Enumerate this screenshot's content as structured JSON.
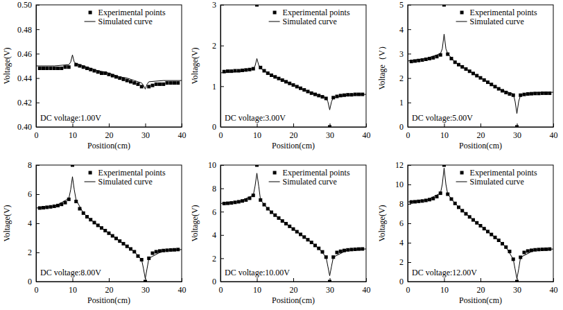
{
  "chart_data": [
    {
      "type": "scatter",
      "annotation": "DC voltage:1.00V",
      "x_label": "Position(cm)",
      "y_label": "Voltage(V)",
      "xlim": [
        0,
        40
      ],
      "xticks": [
        0,
        10,
        20,
        30,
        40
      ],
      "ylim": [
        0.4,
        0.5
      ],
      "yticks": [
        {
          "value": 0.4,
          "label": "0.40"
        },
        {
          "value": 0.42,
          "label": "0.42"
        },
        {
          "value": 0.44,
          "label": "0.44"
        },
        {
          "value": 0.46,
          "label": "0.46"
        },
        {
          "value": 0.48,
          "label": "0.48"
        },
        {
          "value": 0.5,
          "label": "0.50"
        }
      ],
      "legend": "upper right",
      "series": [
        {
          "name": "Experimental points",
          "type": "scatter",
          "marker": "square",
          "color": "#000000",
          "x": [
            1,
            2,
            3,
            4,
            5,
            6,
            7,
            8,
            9,
            10,
            11,
            12,
            13,
            14,
            15,
            16,
            17,
            18,
            19,
            20,
            21,
            22,
            23,
            24,
            25,
            26,
            27,
            28,
            29,
            30,
            31,
            32,
            33,
            34,
            35,
            36,
            37,
            38,
            39
          ],
          "values": [
            0.448,
            0.448,
            0.448,
            0.448,
            0.448,
            0.448,
            0.448,
            0.449,
            0.449,
            null,
            0.451,
            0.45,
            0.449,
            0.448,
            0.447,
            0.446,
            0.445,
            0.444,
            0.444,
            0.443,
            0.442,
            0.441,
            0.44,
            0.439,
            0.438,
            0.437,
            0.436,
            0.435,
            0.433,
            null,
            0.433,
            0.434,
            0.435,
            0.435,
            0.435,
            0.436,
            0.436,
            0.436,
            0.436
          ]
        },
        {
          "name": "Simulated curve",
          "type": "line",
          "line_style": "solid",
          "color": "#000000",
          "x": [
            0,
            5,
            9,
            9.5,
            10,
            10.5,
            11,
            13,
            15,
            17,
            19,
            21,
            23,
            25,
            27,
            29,
            29.5,
            30,
            30.5,
            31,
            35,
            40
          ],
          "values": [
            0.45,
            0.45,
            0.451,
            0.453,
            0.459,
            0.453,
            0.452,
            0.45,
            0.448,
            0.446,
            0.445,
            0.443,
            0.441,
            0.44,
            0.438,
            0.436,
            0.434,
            0.431,
            0.435,
            0.437,
            0.438,
            0.438
          ]
        }
      ]
    },
    {
      "type": "scatter",
      "annotation": "DC voltage:3.00V",
      "x_label": "Position(cm)",
      "y_label": "Voltage(V)",
      "xlim": [
        0,
        40
      ],
      "xticks": [
        0,
        10,
        20,
        30,
        40
      ],
      "ylim": [
        0,
        3
      ],
      "yticks": [
        0,
        1,
        2,
        3
      ],
      "legend": "upper right",
      "series": [
        {
          "name": "Experimental points",
          "type": "scatter",
          "marker": "square",
          "color": "#000000",
          "x": [
            1,
            2,
            3,
            4,
            5,
            6,
            7,
            8,
            9,
            10,
            11,
            12,
            13,
            14,
            15,
            16,
            17,
            18,
            19,
            20,
            21,
            22,
            23,
            24,
            25,
            26,
            27,
            28,
            29,
            30,
            31,
            32,
            33,
            34,
            35,
            36,
            37,
            38,
            39
          ],
          "values": [
            1.36,
            1.37,
            1.37,
            1.38,
            1.38,
            1.39,
            1.4,
            1.41,
            1.43,
            3,
            1.46,
            1.38,
            1.32,
            1.27,
            1.23,
            1.19,
            1.15,
            1.11,
            1.07,
            1.03,
            0.99,
            0.95,
            0.91,
            0.87,
            0.83,
            0.8,
            0.77,
            0.74,
            0.7,
            0,
            0.72,
            0.75,
            0.77,
            0.78,
            0.79,
            0.79,
            0.8,
            0.8,
            0.8
          ]
        },
        {
          "name": "Simulated curve",
          "type": "line",
          "line_style": "solid",
          "color": "#000000",
          "x": [
            0,
            5,
            9,
            9.5,
            10,
            10.5,
            11,
            13,
            15,
            17,
            19,
            21,
            23,
            25,
            27,
            29,
            29.5,
            30,
            30.5,
            31,
            35,
            40
          ],
          "values": [
            1.33,
            1.36,
            1.43,
            1.5,
            1.68,
            1.52,
            1.44,
            1.32,
            1.23,
            1.15,
            1.07,
            0.99,
            0.91,
            0.84,
            0.78,
            0.72,
            0.62,
            0.42,
            0.62,
            0.72,
            0.78,
            0.8
          ]
        }
      ]
    },
    {
      "type": "scatter",
      "annotation": "DC voltage:5.00V",
      "x_label": "Position(cm)",
      "y_label": "Voltage（V）",
      "xlim": [
        0,
        40
      ],
      "xticks": [
        0,
        10,
        20,
        30,
        40
      ],
      "ylim": [
        0,
        5
      ],
      "yticks": [
        0,
        1,
        2,
        3,
        4,
        5
      ],
      "legend": "upper right",
      "series": [
        {
          "name": "Experimental points",
          "type": "scatter",
          "marker": "square",
          "color": "#000000",
          "x": [
            1,
            2,
            3,
            4,
            5,
            6,
            7,
            8,
            9,
            10,
            11,
            12,
            13,
            14,
            15,
            16,
            17,
            18,
            19,
            20,
            21,
            22,
            23,
            24,
            25,
            26,
            27,
            28,
            29,
            30,
            31,
            32,
            33,
            34,
            35,
            36,
            37,
            38,
            39
          ],
          "values": [
            2.68,
            2.7,
            2.72,
            2.74,
            2.77,
            2.8,
            2.83,
            2.88,
            2.95,
            5,
            2.98,
            2.8,
            2.65,
            2.55,
            2.46,
            2.37,
            2.28,
            2.19,
            2.1,
            2.01,
            1.92,
            1.83,
            1.74,
            1.65,
            1.56,
            1.48,
            1.41,
            1.35,
            1.3,
            0,
            1.3,
            1.33,
            1.35,
            1.36,
            1.37,
            1.37,
            1.38,
            1.38,
            1.38
          ]
        },
        {
          "name": "Simulated curve",
          "type": "line",
          "line_style": "solid",
          "color": "#000000",
          "x": [
            0,
            5,
            9,
            9.5,
            10,
            10.5,
            11,
            13,
            15,
            17,
            19,
            21,
            23,
            25,
            27,
            29,
            29.5,
            30,
            30.5,
            31,
            35,
            40
          ],
          "values": [
            2.7,
            2.8,
            3.0,
            3.2,
            3.8,
            3.2,
            3.0,
            2.65,
            2.46,
            2.28,
            2.1,
            1.92,
            1.74,
            1.56,
            1.45,
            1.35,
            1.05,
            0.55,
            1.05,
            1.3,
            1.4,
            1.42
          ]
        }
      ]
    },
    {
      "type": "scatter",
      "annotation": "DC voltage:8.00V",
      "x_label": "Position(cm)",
      "y_label": "Voltage(V)",
      "xlim": [
        0,
        40
      ],
      "xticks": [
        0,
        10,
        20,
        30,
        40
      ],
      "ylim": [
        0,
        8
      ],
      "yticks": [
        0,
        2,
        4,
        6,
        8
      ],
      "legend": "upper right",
      "series": [
        {
          "name": "Experimental points",
          "type": "scatter",
          "marker": "square",
          "color": "#000000",
          "x": [
            1,
            2,
            3,
            4,
            5,
            6,
            7,
            8,
            9,
            10,
            11,
            12,
            13,
            14,
            15,
            16,
            17,
            18,
            19,
            20,
            21,
            22,
            23,
            24,
            25,
            26,
            27,
            28,
            29,
            30,
            31,
            32,
            33,
            34,
            35,
            36,
            37,
            38,
            39
          ],
          "values": [
            5.05,
            5.07,
            5.1,
            5.13,
            5.17,
            5.22,
            5.3,
            5.42,
            5.65,
            8,
            5.5,
            5.0,
            4.7,
            4.45,
            4.25,
            4.05,
            3.86,
            3.68,
            3.5,
            3.32,
            3.14,
            2.96,
            2.78,
            2.6,
            2.42,
            2.24,
            2.05,
            1.75,
            1.5,
            0,
            1.6,
            1.95,
            2.05,
            2.1,
            2.13,
            2.15,
            2.17,
            2.18,
            2.2
          ]
        },
        {
          "name": "Simulated curve",
          "type": "line",
          "line_style": "solid",
          "color": "#000000",
          "x": [
            0,
            5,
            9,
            9.5,
            10,
            10.5,
            11,
            13,
            15,
            17,
            19,
            21,
            23,
            25,
            27,
            29,
            29.5,
            30,
            30.5,
            31,
            35,
            40
          ],
          "values": [
            5.05,
            5.15,
            5.7,
            6.3,
            7.2,
            6.3,
            5.6,
            4.7,
            4.25,
            3.86,
            3.5,
            3.14,
            2.78,
            2.42,
            2.05,
            1.5,
            0.9,
            0.2,
            0.9,
            1.6,
            2.13,
            2.2
          ]
        }
      ]
    },
    {
      "type": "scatter",
      "annotation": "DC voltage:10.00V",
      "x_label": "Position(cm)",
      "y_label": "Voltage(V)",
      "xlim": [
        0,
        40
      ],
      "xticks": [
        0,
        10,
        20,
        30,
        40
      ],
      "ylim": [
        0,
        10
      ],
      "yticks": [
        0,
        2,
        4,
        6,
        8,
        10
      ],
      "legend": "upper right",
      "series": [
        {
          "name": "Experimental points",
          "type": "scatter",
          "marker": "square",
          "color": "#000000",
          "x": [
            1,
            2,
            3,
            4,
            5,
            6,
            7,
            8,
            9,
            10,
            11,
            12,
            13,
            14,
            15,
            16,
            17,
            18,
            19,
            20,
            21,
            22,
            23,
            24,
            25,
            26,
            27,
            28,
            29,
            30,
            31,
            32,
            33,
            34,
            35,
            36,
            37,
            38,
            39
          ],
          "values": [
            6.7,
            6.72,
            6.75,
            6.8,
            6.85,
            6.92,
            7.0,
            7.15,
            7.4,
            10,
            7.0,
            6.6,
            6.25,
            5.95,
            5.7,
            5.45,
            5.2,
            4.97,
            4.74,
            4.51,
            4.28,
            4.05,
            3.82,
            3.59,
            3.36,
            3.1,
            2.85,
            2.55,
            2.1,
            0,
            2.1,
            2.5,
            2.6,
            2.67,
            2.72,
            2.75,
            2.77,
            2.79,
            2.8
          ]
        },
        {
          "name": "Simulated curve",
          "type": "line",
          "line_style": "solid",
          "color": "#000000",
          "x": [
            0,
            5,
            9,
            9.5,
            10,
            10.5,
            11,
            13,
            15,
            17,
            19,
            21,
            23,
            25,
            27,
            29,
            29.5,
            30,
            30.5,
            31,
            35,
            40
          ],
          "values": [
            6.7,
            6.85,
            7.4,
            8.2,
            9.3,
            8.2,
            7.0,
            6.25,
            5.7,
            5.2,
            4.74,
            4.28,
            3.82,
            3.36,
            2.85,
            2.1,
            1.3,
            0.5,
            1.3,
            2.1,
            2.72,
            2.8
          ]
        }
      ]
    },
    {
      "type": "scatter",
      "annotation": "DC voltage:12.00V",
      "x_label": "Position(cm)",
      "y_label": "Voltage(V)",
      "xlim": [
        0,
        40
      ],
      "xticks": [
        0,
        10,
        20,
        30,
        40
      ],
      "ylim": [
        0,
        12
      ],
      "yticks": [
        0,
        2,
        4,
        6,
        8,
        10,
        12
      ],
      "legend": "upper right",
      "series": [
        {
          "name": "Experimental points",
          "type": "scatter",
          "marker": "square",
          "color": "#000000",
          "x": [
            1,
            2,
            3,
            4,
            5,
            6,
            7,
            8,
            9,
            10,
            11,
            12,
            13,
            14,
            15,
            16,
            17,
            18,
            19,
            20,
            21,
            22,
            23,
            24,
            25,
            26,
            27,
            28,
            29,
            30,
            31,
            32,
            33,
            34,
            35,
            36,
            37,
            38,
            39
          ],
          "values": [
            8.2,
            8.22,
            8.26,
            8.3,
            8.36,
            8.44,
            8.55,
            8.75,
            9.1,
            12,
            9.0,
            8.5,
            8.05,
            7.65,
            7.3,
            6.98,
            6.66,
            6.35,
            6.05,
            5.75,
            5.45,
            5.15,
            4.85,
            4.55,
            4.25,
            3.9,
            3.55,
            3.1,
            2.3,
            0,
            2.5,
            3.0,
            3.15,
            3.22,
            3.27,
            3.3,
            3.32,
            3.33,
            3.35
          ]
        },
        {
          "name": "Simulated curve",
          "type": "line",
          "line_style": "solid",
          "color": "#000000",
          "x": [
            0,
            5,
            9,
            9.5,
            10,
            10.5,
            11,
            13,
            15,
            17,
            19,
            21,
            23,
            25,
            27,
            29,
            29.5,
            30,
            30.5,
            31,
            35,
            40
          ],
          "values": [
            8.2,
            8.36,
            9.1,
            10.0,
            11.7,
            10.0,
            9.0,
            8.05,
            7.3,
            6.66,
            6.05,
            5.45,
            4.85,
            4.25,
            3.55,
            2.3,
            1.3,
            0.3,
            1.3,
            2.5,
            3.27,
            3.35
          ]
        }
      ]
    }
  ]
}
